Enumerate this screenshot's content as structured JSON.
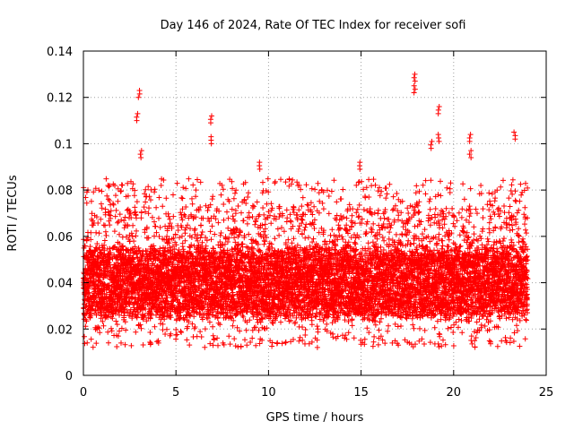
{
  "chart_data": {
    "type": "scatter",
    "title": "Day 146 of 2024, Rate Of TEC Index for receiver sofi",
    "xlabel": "GPS time / hours",
    "ylabel": "ROTI / TECUs",
    "xlim": [
      0,
      25
    ],
    "ylim": [
      0,
      0.14
    ],
    "x_ticks": [
      0,
      5,
      10,
      15,
      20,
      25
    ],
    "y_ticks": [
      0,
      0.02,
      0.04,
      0.06,
      0.08,
      0.1,
      0.12,
      0.14
    ],
    "x_tick_labels": [
      "0",
      "5",
      "10",
      "15",
      "20",
      "25"
    ],
    "y_tick_labels": [
      "0",
      "0.02",
      "0.04",
      "0.06",
      "0.08",
      "0.1",
      "0.12",
      "0.14"
    ],
    "grid": true,
    "marker": "+",
    "color": "#ff0000",
    "series": [
      {
        "name": "ROTI",
        "x_range": [
          0,
          24
        ],
        "typical_band": [
          0.02,
          0.06
        ],
        "peaks": [
          {
            "x": 3.0,
            "y": 0.123
          },
          {
            "x": 2.9,
            "y": 0.113
          },
          {
            "x": 3.1,
            "y": 0.097
          },
          {
            "x": 6.9,
            "y": 0.112
          },
          {
            "x": 6.9,
            "y": 0.103
          },
          {
            "x": 9.5,
            "y": 0.092
          },
          {
            "x": 14.9,
            "y": 0.092
          },
          {
            "x": 17.9,
            "y": 0.13
          },
          {
            "x": 17.9,
            "y": 0.125
          },
          {
            "x": 18.8,
            "y": 0.101
          },
          {
            "x": 19.2,
            "y": 0.116
          },
          {
            "x": 19.2,
            "y": 0.104
          },
          {
            "x": 20.9,
            "y": 0.104
          },
          {
            "x": 20.9,
            "y": 0.097
          },
          {
            "x": 23.3,
            "y": 0.105
          }
        ]
      }
    ]
  }
}
